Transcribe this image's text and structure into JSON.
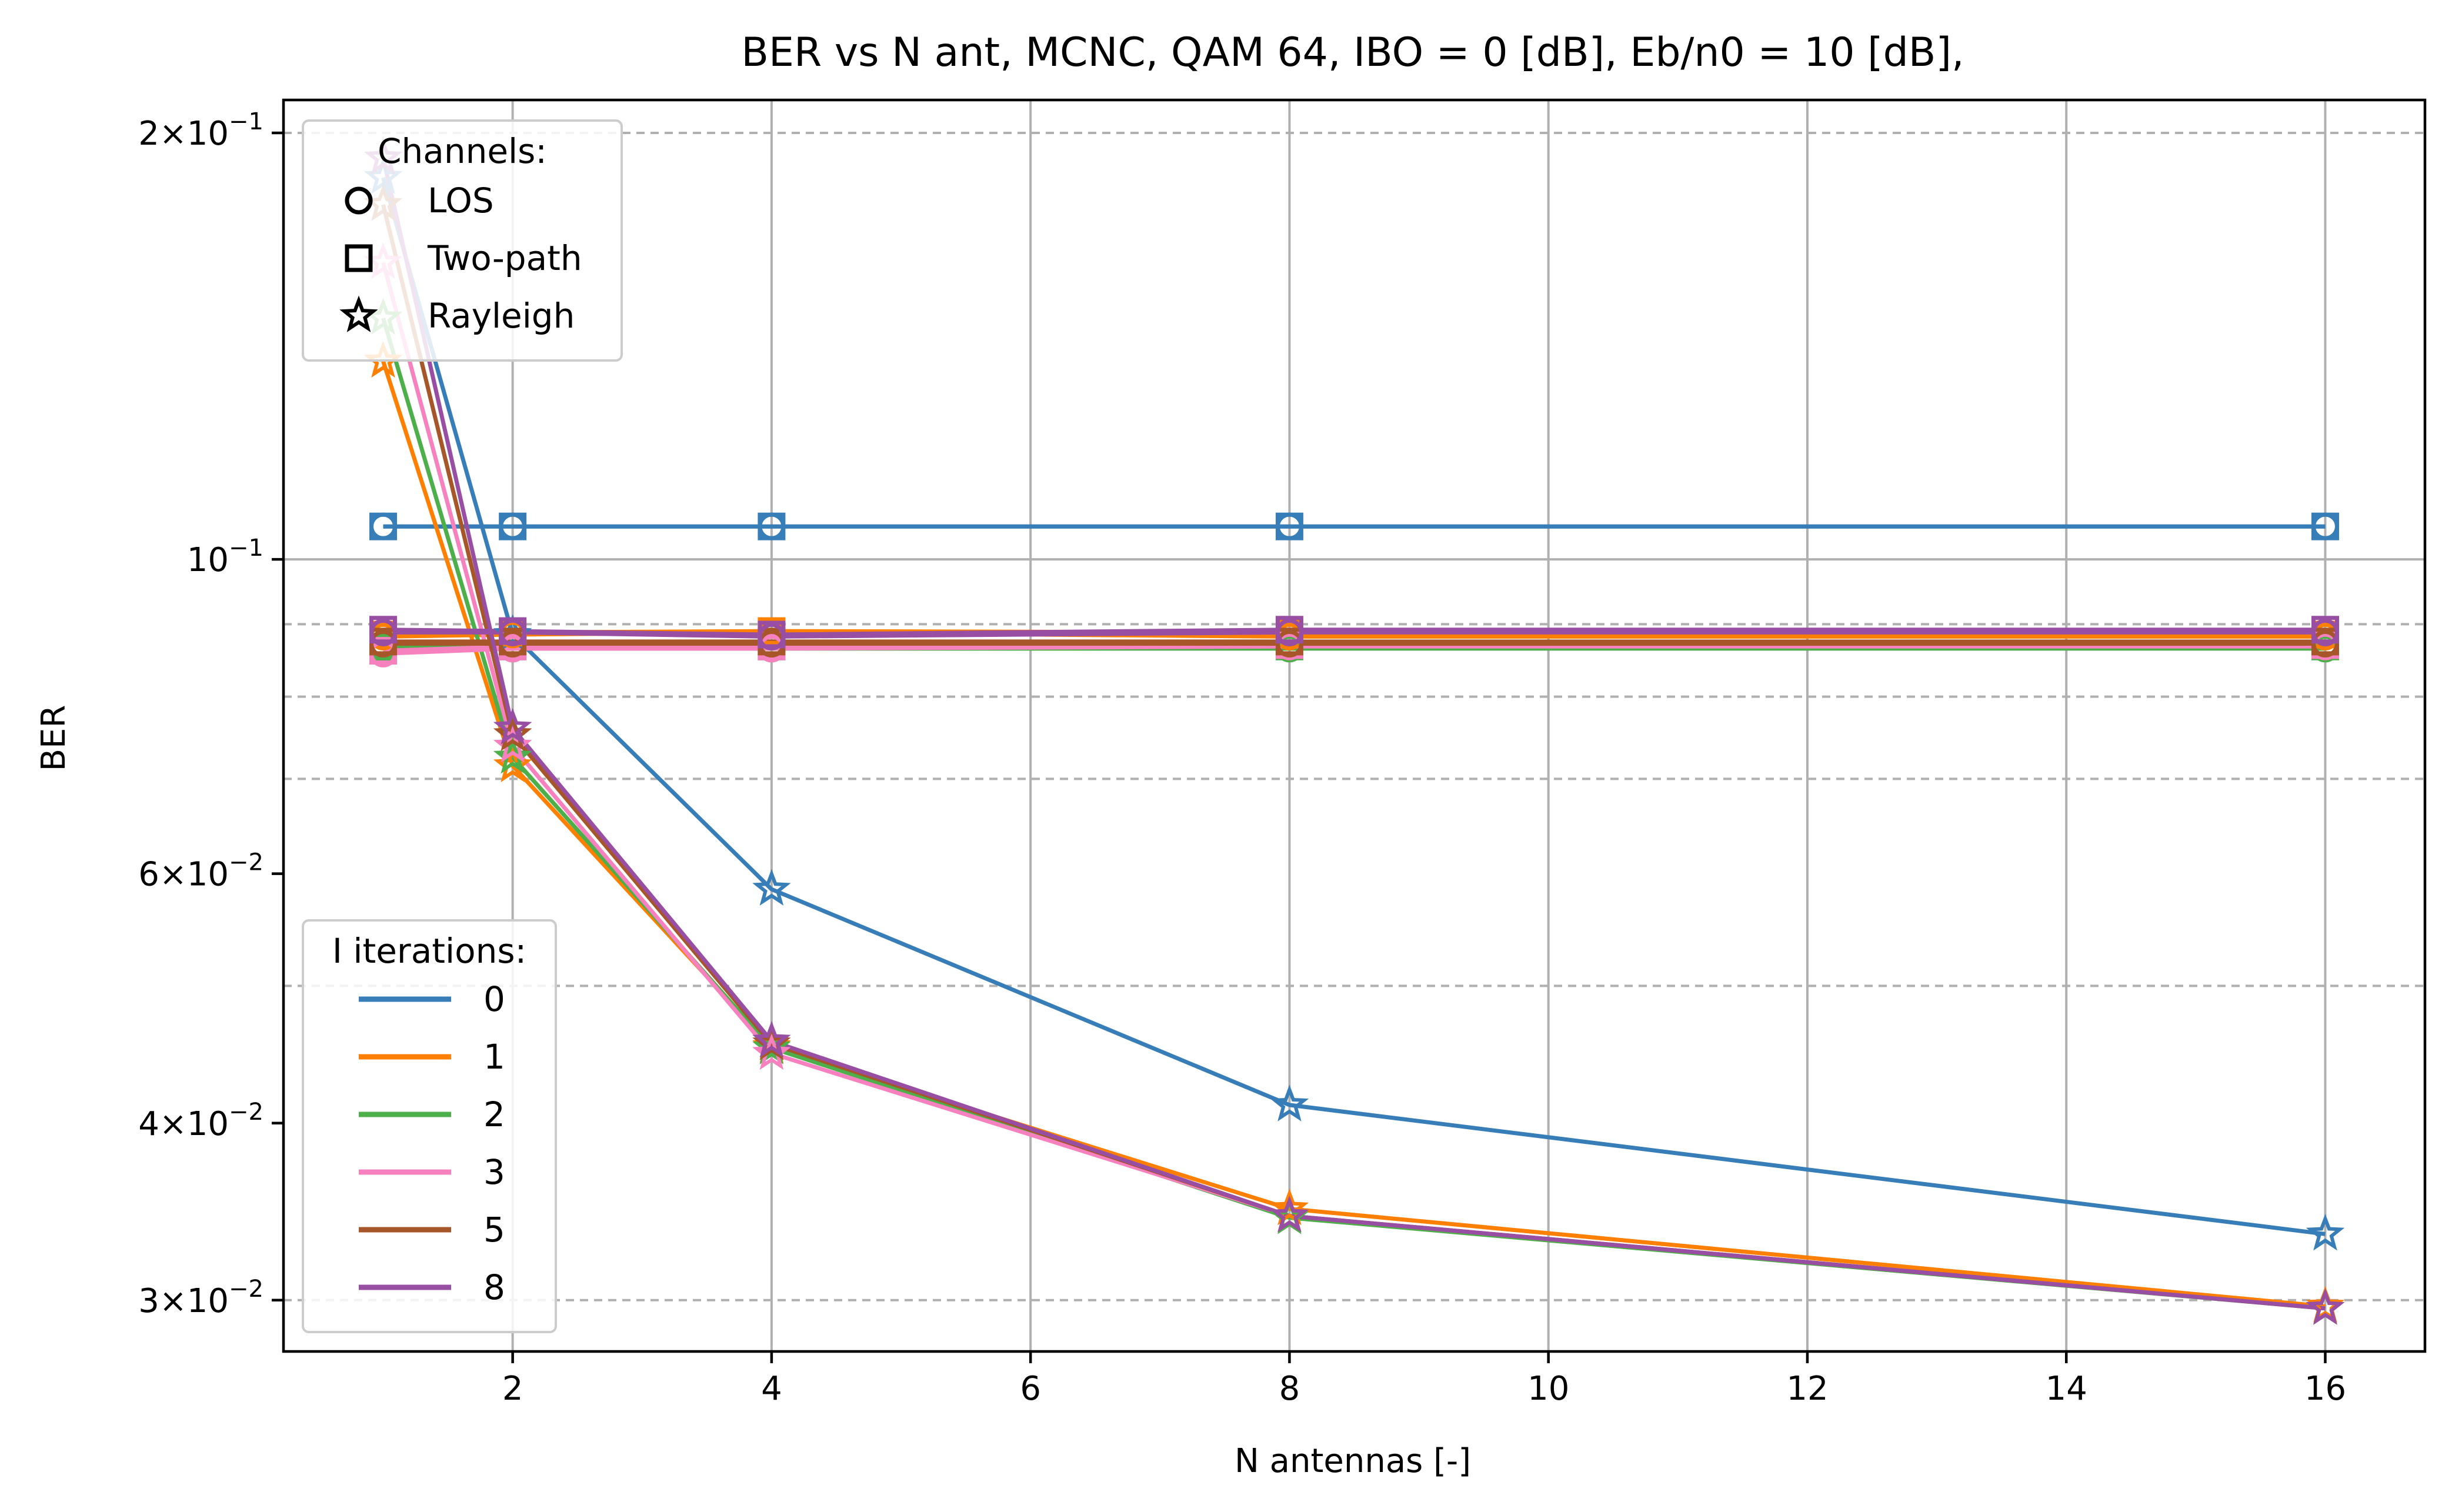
{
  "chart_data": {
    "type": "line",
    "title": "BER vs N ant, MCNC, QAM 64, IBO = 0 [dB], Eb/n0 = 10 [dB],",
    "xlabel": "N antennas [-]",
    "ylabel": "BER",
    "xlim": [
      0.23,
      16.77
    ],
    "ylim": [
      0.0276,
      0.211
    ],
    "yscale": "log",
    "grid": true,
    "x_ticks": [
      2,
      4,
      6,
      8,
      10,
      12,
      14,
      16
    ],
    "y_ticks": [
      {
        "value": 0.2,
        "label_base": "2×10",
        "label_exp": "−1"
      },
      {
        "value": 0.1,
        "label_base": "10",
        "label_exp": "−1"
      },
      {
        "value": 0.06,
        "label_base": "6×10",
        "label_exp": "−2"
      },
      {
        "value": 0.04,
        "label_base": "4×10",
        "label_exp": "−2"
      },
      {
        "value": 0.03,
        "label_base": "3×10",
        "label_exp": "−2"
      }
    ],
    "y_minor_grid": [
      0.2,
      0.09,
      0.08,
      0.07,
      0.05,
      0.03
    ],
    "x": [
      1,
      2,
      4,
      8,
      16
    ],
    "iterations_legend_title": "I iterations:",
    "channels_legend_title": "Channels:",
    "iterations": [
      {
        "name": "0",
        "color": "#377eb8"
      },
      {
        "name": "1",
        "color": "#ff7f00"
      },
      {
        "name": "2",
        "color": "#4daf4a"
      },
      {
        "name": "3",
        "color": "#f781bf"
      },
      {
        "name": "5",
        "color": "#a65628"
      },
      {
        "name": "8",
        "color": "#984ea3"
      }
    ],
    "channels": [
      {
        "name": "LOS",
        "marker": "circle"
      },
      {
        "name": "Two-path",
        "marker": "square"
      },
      {
        "name": "Rayleigh",
        "marker": "star"
      }
    ],
    "series": [
      {
        "iteration": "0",
        "channel": "LOS",
        "values": [
          0.1055,
          0.1055,
          0.1055,
          0.1055,
          0.1055
        ]
      },
      {
        "iteration": "0",
        "channel": "Two-path",
        "values": [
          0.1055,
          0.1055,
          0.1055,
          0.1055,
          0.1055
        ]
      },
      {
        "iteration": "0",
        "channel": "Rayleigh",
        "values": [
          0.186,
          0.0885,
          0.0585,
          0.0412,
          0.0334
        ]
      },
      {
        "iteration": "1",
        "channel": "LOS",
        "values": [
          0.0882,
          0.0885,
          0.0888,
          0.0882,
          0.0882
        ]
      },
      {
        "iteration": "1",
        "channel": "Two-path",
        "values": [
          0.0885,
          0.0888,
          0.089,
          0.0888,
          0.0885
        ]
      },
      {
        "iteration": "1",
        "channel": "Rayleigh",
        "values": [
          0.138,
          0.0715,
          0.0453,
          0.0348,
          0.0297
        ]
      },
      {
        "iteration": "2",
        "channel": "LOS",
        "values": [
          0.0865,
          0.0865,
          0.0865,
          0.0865,
          0.0865
        ]
      },
      {
        "iteration": "2",
        "channel": "Two-path",
        "values": [
          0.0868,
          0.0868,
          0.0868,
          0.0868,
          0.0868
        ]
      },
      {
        "iteration": "2",
        "channel": "Rayleigh",
        "values": [
          0.148,
          0.0725,
          0.0452,
          0.0343,
          0.0296
        ]
      },
      {
        "iteration": "3",
        "channel": "LOS",
        "values": [
          0.0858,
          0.0865,
          0.0865,
          0.0868,
          0.0868
        ]
      },
      {
        "iteration": "3",
        "channel": "Two-path",
        "values": [
          0.0862,
          0.0868,
          0.0868,
          0.087,
          0.087
        ]
      },
      {
        "iteration": "3",
        "channel": "Rayleigh",
        "values": [
          0.162,
          0.0738,
          0.0448,
          0.0344,
          0.0296
        ]
      },
      {
        "iteration": "5",
        "channel": "LOS",
        "values": [
          0.0872,
          0.0872,
          0.0872,
          0.0872,
          0.0872
        ]
      },
      {
        "iteration": "5",
        "channel": "Two-path",
        "values": [
          0.0875,
          0.0875,
          0.0875,
          0.0875,
          0.0875
        ]
      },
      {
        "iteration": "5",
        "channel": "Rayleigh",
        "values": [
          0.178,
          0.0752,
          0.0455,
          0.0344,
          0.0296
        ]
      },
      {
        "iteration": "8",
        "channel": "LOS",
        "values": [
          0.0888,
          0.0888,
          0.0882,
          0.0888,
          0.0888
        ]
      },
      {
        "iteration": "8",
        "channel": "Two-path",
        "values": [
          0.0892,
          0.089,
          0.0885,
          0.0892,
          0.0892
        ]
      },
      {
        "iteration": "8",
        "channel": "Rayleigh",
        "values": [
          0.192,
          0.076,
          0.0457,
          0.0344,
          0.0296
        ]
      }
    ]
  }
}
